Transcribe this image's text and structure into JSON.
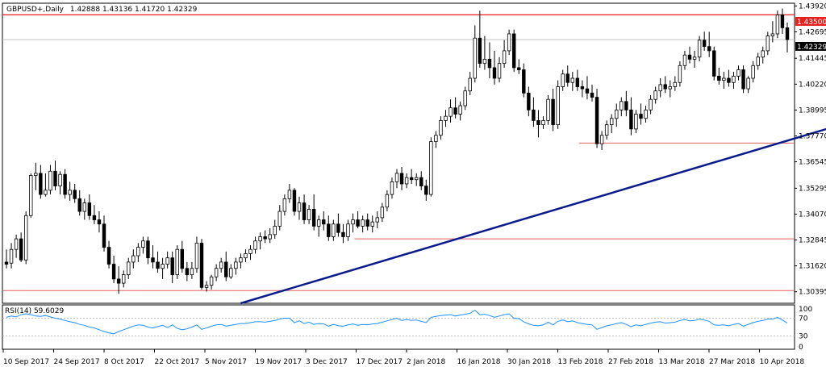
{
  "chart_data": {
    "type": "candlestick",
    "title": "GBPUSD+,Daily",
    "ohlc_readout": "1.42888 1.43136 1.41720 1.42329",
    "price_axis": {
      "ylim": [
        1.2985,
        1.4405
      ],
      "ticks": [
        "1.43920",
        "1.42695",
        "1.41445",
        "1.40220",
        "1.38995",
        "1.37770",
        "1.36545",
        "1.35295",
        "1.34070",
        "1.32845",
        "1.31620",
        "1.30395"
      ]
    },
    "x_axis": {
      "tick_labels": [
        "10 Sep 2017",
        "24 Sep 2017",
        "8 Oct 2017",
        "22 Oct 2017",
        "5 Nov 2017",
        "19 Nov 2017",
        "3 Dec 2017",
        "17 Dec 2017",
        "2 Jan 2018",
        "16 Jan 2018",
        "30 Jan 2018",
        "13 Feb 2018",
        "27 Feb 2018",
        "13 Mar 2018",
        "27 Mar 2018",
        "10 Apr 2018"
      ]
    },
    "current_price_label": "1.42329",
    "resistance_label": "1.43500",
    "horizontal_levels": [
      {
        "price": 1.435,
        "color": "#e8211f",
        "labeled": true
      },
      {
        "price": 1.3743,
        "color": "#e06060",
        "from_bar": 118
      },
      {
        "price": 1.329,
        "color": "#e06060",
        "from_bar": 72
      },
      {
        "price": 1.3045,
        "color": "#e06060",
        "from_bar": 0
      }
    ],
    "trendline": {
      "color": "#0b1a8c",
      "points": [
        [
          48,
          1.2985
        ],
        [
          203,
          1.405
        ]
      ]
    },
    "candles": [
      {
        "o": 1.318,
        "h": 1.324,
        "l": 1.315,
        "c": 1.317
      },
      {
        "o": 1.3175,
        "h": 1.327,
        "l": 1.315,
        "c": 1.324
      },
      {
        "o": 1.324,
        "h": 1.331,
        "l": 1.32,
        "c": 1.329
      },
      {
        "o": 1.329,
        "h": 1.332,
        "l": 1.318,
        "c": 1.319
      },
      {
        "o": 1.319,
        "h": 1.342,
        "l": 1.317,
        "c": 1.34
      },
      {
        "o": 1.34,
        "h": 1.36,
        "l": 1.339,
        "c": 1.359
      },
      {
        "o": 1.359,
        "h": 1.365,
        "l": 1.352,
        "c": 1.36
      },
      {
        "o": 1.36,
        "h": 1.364,
        "l": 1.348,
        "c": 1.35
      },
      {
        "o": 1.35,
        "h": 1.36,
        "l": 1.349,
        "c": 1.352
      },
      {
        "o": 1.352,
        "h": 1.364,
        "l": 1.35,
        "c": 1.361
      },
      {
        "o": 1.361,
        "h": 1.366,
        "l": 1.352,
        "c": 1.354
      },
      {
        "o": 1.354,
        "h": 1.361,
        "l": 1.35,
        "c": 1.3595
      },
      {
        "o": 1.3595,
        "h": 1.362,
        "l": 1.348,
        "c": 1.35
      },
      {
        "o": 1.35,
        "h": 1.356,
        "l": 1.347,
        "c": 1.352
      },
      {
        "o": 1.352,
        "h": 1.355,
        "l": 1.346,
        "c": 1.348
      },
      {
        "o": 1.348,
        "h": 1.352,
        "l": 1.34,
        "c": 1.342
      },
      {
        "o": 1.342,
        "h": 1.348,
        "l": 1.338,
        "c": 1.346
      },
      {
        "o": 1.346,
        "h": 1.35,
        "l": 1.338,
        "c": 1.34
      },
      {
        "o": 1.34,
        "h": 1.345,
        "l": 1.336,
        "c": 1.338
      },
      {
        "o": 1.338,
        "h": 1.342,
        "l": 1.332,
        "c": 1.336
      },
      {
        "o": 1.336,
        "h": 1.34,
        "l": 1.323,
        "c": 1.325
      },
      {
        "o": 1.325,
        "h": 1.328,
        "l": 1.315,
        "c": 1.317
      },
      {
        "o": 1.317,
        "h": 1.321,
        "l": 1.308,
        "c": 1.31
      },
      {
        "o": 1.31,
        "h": 1.316,
        "l": 1.303,
        "c": 1.308
      },
      {
        "o": 1.308,
        "h": 1.314,
        "l": 1.306,
        "c": 1.312
      },
      {
        "o": 1.312,
        "h": 1.32,
        "l": 1.31,
        "c": 1.318
      },
      {
        "o": 1.318,
        "h": 1.324,
        "l": 1.315,
        "c": 1.321
      },
      {
        "o": 1.321,
        "h": 1.327,
        "l": 1.318,
        "c": 1.325
      },
      {
        "o": 1.325,
        "h": 1.33,
        "l": 1.322,
        "c": 1.328
      },
      {
        "o": 1.328,
        "h": 1.33,
        "l": 1.317,
        "c": 1.32
      },
      {
        "o": 1.32,
        "h": 1.326,
        "l": 1.315,
        "c": 1.318
      },
      {
        "o": 1.318,
        "h": 1.323,
        "l": 1.313,
        "c": 1.315
      },
      {
        "o": 1.315,
        "h": 1.32,
        "l": 1.31,
        "c": 1.317
      },
      {
        "o": 1.317,
        "h": 1.323,
        "l": 1.315,
        "c": 1.32
      },
      {
        "o": 1.32,
        "h": 1.323,
        "l": 1.308,
        "c": 1.312
      },
      {
        "o": 1.312,
        "h": 1.326,
        "l": 1.31,
        "c": 1.324
      },
      {
        "o": 1.324,
        "h": 1.328,
        "l": 1.313,
        "c": 1.315
      },
      {
        "o": 1.315,
        "h": 1.318,
        "l": 1.309,
        "c": 1.312
      },
      {
        "o": 1.312,
        "h": 1.318,
        "l": 1.31,
        "c": 1.315
      },
      {
        "o": 1.315,
        "h": 1.33,
        "l": 1.313,
        "c": 1.327
      },
      {
        "o": 1.327,
        "h": 1.329,
        "l": 1.305,
        "c": 1.306
      },
      {
        "o": 1.306,
        "h": 1.309,
        "l": 1.304,
        "c": 1.307
      },
      {
        "o": 1.307,
        "h": 1.312,
        "l": 1.305,
        "c": 1.311
      },
      {
        "o": 1.311,
        "h": 1.317,
        "l": 1.309,
        "c": 1.315
      },
      {
        "o": 1.315,
        "h": 1.32,
        "l": 1.313,
        "c": 1.318
      },
      {
        "o": 1.318,
        "h": 1.323,
        "l": 1.309,
        "c": 1.311
      },
      {
        "o": 1.311,
        "h": 1.317,
        "l": 1.31,
        "c": 1.315
      },
      {
        "o": 1.315,
        "h": 1.32,
        "l": 1.312,
        "c": 1.318
      },
      {
        "o": 1.318,
        "h": 1.322,
        "l": 1.315,
        "c": 1.32
      },
      {
        "o": 1.32,
        "h": 1.324,
        "l": 1.318,
        "c": 1.322
      },
      {
        "o": 1.322,
        "h": 1.326,
        "l": 1.319,
        "c": 1.324
      },
      {
        "o": 1.324,
        "h": 1.33,
        "l": 1.322,
        "c": 1.328
      },
      {
        "o": 1.328,
        "h": 1.332,
        "l": 1.324,
        "c": 1.33
      },
      {
        "o": 1.33,
        "h": 1.333,
        "l": 1.327,
        "c": 1.329
      },
      {
        "o": 1.329,
        "h": 1.334,
        "l": 1.327,
        "c": 1.331
      },
      {
        "o": 1.331,
        "h": 1.338,
        "l": 1.329,
        "c": 1.335
      },
      {
        "o": 1.335,
        "h": 1.345,
        "l": 1.333,
        "c": 1.342
      },
      {
        "o": 1.342,
        "h": 1.35,
        "l": 1.34,
        "c": 1.348
      },
      {
        "o": 1.348,
        "h": 1.355,
        "l": 1.346,
        "c": 1.352
      },
      {
        "o": 1.352,
        "h": 1.353,
        "l": 1.34,
        "c": 1.342
      },
      {
        "o": 1.342,
        "h": 1.349,
        "l": 1.338,
        "c": 1.346
      },
      {
        "o": 1.346,
        "h": 1.35,
        "l": 1.336,
        "c": 1.338
      },
      {
        "o": 1.338,
        "h": 1.345,
        "l": 1.336,
        "c": 1.343
      },
      {
        "o": 1.343,
        "h": 1.35,
        "l": 1.333,
        "c": 1.335
      },
      {
        "o": 1.335,
        "h": 1.34,
        "l": 1.33,
        "c": 1.338
      },
      {
        "o": 1.338,
        "h": 1.342,
        "l": 1.333,
        "c": 1.336
      },
      {
        "o": 1.336,
        "h": 1.34,
        "l": 1.328,
        "c": 1.33
      },
      {
        "o": 1.33,
        "h": 1.338,
        "l": 1.328,
        "c": 1.336
      },
      {
        "o": 1.336,
        "h": 1.341,
        "l": 1.33,
        "c": 1.332
      },
      {
        "o": 1.332,
        "h": 1.336,
        "l": 1.327,
        "c": 1.33
      },
      {
        "o": 1.33,
        "h": 1.338,
        "l": 1.328,
        "c": 1.336
      },
      {
        "o": 1.336,
        "h": 1.341,
        "l": 1.332,
        "c": 1.338
      },
      {
        "o": 1.338,
        "h": 1.342,
        "l": 1.334,
        "c": 1.335
      },
      {
        "o": 1.335,
        "h": 1.34,
        "l": 1.332,
        "c": 1.338
      },
      {
        "o": 1.338,
        "h": 1.341,
        "l": 1.333,
        "c": 1.335
      },
      {
        "o": 1.335,
        "h": 1.34,
        "l": 1.332,
        "c": 1.337
      },
      {
        "o": 1.337,
        "h": 1.342,
        "l": 1.334,
        "c": 1.339
      },
      {
        "o": 1.339,
        "h": 1.346,
        "l": 1.337,
        "c": 1.344
      },
      {
        "o": 1.344,
        "h": 1.352,
        "l": 1.342,
        "c": 1.35
      },
      {
        "o": 1.35,
        "h": 1.358,
        "l": 1.348,
        "c": 1.356
      },
      {
        "o": 1.356,
        "h": 1.362,
        "l": 1.353,
        "c": 1.36
      },
      {
        "o": 1.36,
        "h": 1.363,
        "l": 1.352,
        "c": 1.355
      },
      {
        "o": 1.355,
        "h": 1.36,
        "l": 1.353,
        "c": 1.358
      },
      {
        "o": 1.358,
        "h": 1.362,
        "l": 1.355,
        "c": 1.357
      },
      {
        "o": 1.357,
        "h": 1.36,
        "l": 1.354,
        "c": 1.358
      },
      {
        "o": 1.358,
        "h": 1.361,
        "l": 1.352,
        "c": 1.354
      },
      {
        "o": 1.354,
        "h": 1.357,
        "l": 1.347,
        "c": 1.35
      },
      {
        "o": 1.35,
        "h": 1.377,
        "l": 1.349,
        "c": 1.375
      },
      {
        "o": 1.375,
        "h": 1.38,
        "l": 1.372,
        "c": 1.378
      },
      {
        "o": 1.378,
        "h": 1.387,
        "l": 1.376,
        "c": 1.385
      },
      {
        "o": 1.385,
        "h": 1.39,
        "l": 1.382,
        "c": 1.387
      },
      {
        "o": 1.387,
        "h": 1.395,
        "l": 1.384,
        "c": 1.391
      },
      {
        "o": 1.391,
        "h": 1.396,
        "l": 1.386,
        "c": 1.388
      },
      {
        "o": 1.388,
        "h": 1.394,
        "l": 1.385,
        "c": 1.392
      },
      {
        "o": 1.392,
        "h": 1.401,
        "l": 1.39,
        "c": 1.399
      },
      {
        "o": 1.399,
        "h": 1.408,
        "l": 1.397,
        "c": 1.405
      },
      {
        "o": 1.405,
        "h": 1.43,
        "l": 1.403,
        "c": 1.424
      },
      {
        "o": 1.424,
        "h": 1.437,
        "l": 1.41,
        "c": 1.412
      },
      {
        "o": 1.412,
        "h": 1.425,
        "l": 1.409,
        "c": 1.414
      },
      {
        "o": 1.414,
        "h": 1.422,
        "l": 1.405,
        "c": 1.41
      },
      {
        "o": 1.41,
        "h": 1.418,
        "l": 1.402,
        "c": 1.405
      },
      {
        "o": 1.405,
        "h": 1.415,
        "l": 1.403,
        "c": 1.412
      },
      {
        "o": 1.412,
        "h": 1.423,
        "l": 1.41,
        "c": 1.418
      },
      {
        "o": 1.418,
        "h": 1.428,
        "l": 1.416,
        "c": 1.426
      },
      {
        "o": 1.426,
        "h": 1.428,
        "l": 1.408,
        "c": 1.41
      },
      {
        "o": 1.41,
        "h": 1.414,
        "l": 1.407,
        "c": 1.409
      },
      {
        "o": 1.409,
        "h": 1.412,
        "l": 1.396,
        "c": 1.398
      },
      {
        "o": 1.398,
        "h": 1.401,
        "l": 1.387,
        "c": 1.39
      },
      {
        "o": 1.39,
        "h": 1.396,
        "l": 1.382,
        "c": 1.385
      },
      {
        "o": 1.385,
        "h": 1.39,
        "l": 1.377,
        "c": 1.383
      },
      {
        "o": 1.383,
        "h": 1.387,
        "l": 1.381,
        "c": 1.385
      },
      {
        "o": 1.385,
        "h": 1.397,
        "l": 1.383,
        "c": 1.395
      },
      {
        "o": 1.395,
        "h": 1.4,
        "l": 1.38,
        "c": 1.383
      },
      {
        "o": 1.383,
        "h": 1.404,
        "l": 1.381,
        "c": 1.401
      },
      {
        "o": 1.401,
        "h": 1.409,
        "l": 1.399,
        "c": 1.407
      },
      {
        "o": 1.407,
        "h": 1.411,
        "l": 1.401,
        "c": 1.403
      },
      {
        "o": 1.403,
        "h": 1.408,
        "l": 1.399,
        "c": 1.405
      },
      {
        "o": 1.405,
        "h": 1.409,
        "l": 1.399,
        "c": 1.401
      },
      {
        "o": 1.401,
        "h": 1.404,
        "l": 1.396,
        "c": 1.4
      },
      {
        "o": 1.4,
        "h": 1.406,
        "l": 1.395,
        "c": 1.398
      },
      {
        "o": 1.398,
        "h": 1.402,
        "l": 1.394,
        "c": 1.396
      },
      {
        "o": 1.396,
        "h": 1.4,
        "l": 1.372,
        "c": 1.374
      },
      {
        "o": 1.374,
        "h": 1.38,
        "l": 1.371,
        "c": 1.378
      },
      {
        "o": 1.378,
        "h": 1.385,
        "l": 1.376,
        "c": 1.383
      },
      {
        "o": 1.383,
        "h": 1.388,
        "l": 1.379,
        "c": 1.386
      },
      {
        "o": 1.386,
        "h": 1.393,
        "l": 1.382,
        "c": 1.39
      },
      {
        "o": 1.39,
        "h": 1.396,
        "l": 1.387,
        "c": 1.394
      },
      {
        "o": 1.394,
        "h": 1.399,
        "l": 1.387,
        "c": 1.39
      },
      {
        "o": 1.39,
        "h": 1.396,
        "l": 1.378,
        "c": 1.381
      },
      {
        "o": 1.381,
        "h": 1.39,
        "l": 1.379,
        "c": 1.388
      },
      {
        "o": 1.388,
        "h": 1.393,
        "l": 1.383,
        "c": 1.386
      },
      {
        "o": 1.386,
        "h": 1.392,
        "l": 1.384,
        "c": 1.39
      },
      {
        "o": 1.39,
        "h": 1.397,
        "l": 1.388,
        "c": 1.395
      },
      {
        "o": 1.395,
        "h": 1.401,
        "l": 1.393,
        "c": 1.399
      },
      {
        "o": 1.399,
        "h": 1.405,
        "l": 1.396,
        "c": 1.402
      },
      {
        "o": 1.402,
        "h": 1.406,
        "l": 1.398,
        "c": 1.4
      },
      {
        "o": 1.4,
        "h": 1.404,
        "l": 1.396,
        "c": 1.401
      },
      {
        "o": 1.401,
        "h": 1.406,
        "l": 1.399,
        "c": 1.403
      },
      {
        "o": 1.403,
        "h": 1.413,
        "l": 1.401,
        "c": 1.411
      },
      {
        "o": 1.411,
        "h": 1.418,
        "l": 1.409,
        "c": 1.416
      },
      {
        "o": 1.416,
        "h": 1.42,
        "l": 1.412,
        "c": 1.414
      },
      {
        "o": 1.414,
        "h": 1.418,
        "l": 1.41,
        "c": 1.415
      },
      {
        "o": 1.415,
        "h": 1.425,
        "l": 1.413,
        "c": 1.423
      },
      {
        "o": 1.423,
        "h": 1.427,
        "l": 1.418,
        "c": 1.42
      },
      {
        "o": 1.42,
        "h": 1.427,
        "l": 1.415,
        "c": 1.418
      },
      {
        "o": 1.418,
        "h": 1.42,
        "l": 1.404,
        "c": 1.406
      },
      {
        "o": 1.406,
        "h": 1.41,
        "l": 1.402,
        "c": 1.404
      },
      {
        "o": 1.404,
        "h": 1.408,
        "l": 1.4,
        "c": 1.405
      },
      {
        "o": 1.405,
        "h": 1.409,
        "l": 1.401,
        "c": 1.403
      },
      {
        "o": 1.403,
        "h": 1.408,
        "l": 1.4,
        "c": 1.406
      },
      {
        "o": 1.406,
        "h": 1.411,
        "l": 1.404,
        "c": 1.409
      },
      {
        "o": 1.409,
        "h": 1.411,
        "l": 1.398,
        "c": 1.4
      },
      {
        "o": 1.4,
        "h": 1.406,
        "l": 1.398,
        "c": 1.405
      },
      {
        "o": 1.405,
        "h": 1.413,
        "l": 1.403,
        "c": 1.411
      },
      {
        "o": 1.411,
        "h": 1.417,
        "l": 1.409,
        "c": 1.415
      },
      {
        "o": 1.415,
        "h": 1.42,
        "l": 1.412,
        "c": 1.418
      },
      {
        "o": 1.418,
        "h": 1.427,
        "l": 1.416,
        "c": 1.425
      },
      {
        "o": 1.425,
        "h": 1.432,
        "l": 1.422,
        "c": 1.426
      },
      {
        "o": 1.426,
        "h": 1.437,
        "l": 1.424,
        "c": 1.435
      },
      {
        "o": 1.435,
        "h": 1.438,
        "l": 1.426,
        "c": 1.4289
      },
      {
        "o": 1.42888,
        "h": 1.43136,
        "l": 1.4172,
        "c": 1.42329
      }
    ],
    "rsi": {
      "label": "RSI(14) 59.6029",
      "ylim": [
        0,
        100
      ],
      "ticks": [
        "100",
        "70",
        "30",
        "0"
      ],
      "levels": [
        70,
        30
      ],
      "line_color": "#1e90ff",
      "values": [
        72,
        75,
        73,
        78,
        80,
        78,
        75,
        74,
        76,
        73,
        70,
        68,
        65,
        62,
        60,
        56,
        54,
        50,
        48,
        44,
        40,
        37,
        35,
        40,
        44,
        48,
        52,
        55,
        54,
        50,
        48,
        51,
        54,
        49,
        55,
        47,
        44,
        46,
        50,
        55,
        45,
        48,
        52,
        55,
        56,
        52,
        54,
        56,
        58,
        58,
        60,
        62,
        62,
        61,
        63,
        65,
        68,
        70,
        70,
        60,
        64,
        58,
        61,
        56,
        58,
        57,
        52,
        56,
        53,
        52,
        55,
        57,
        54,
        56,
        55,
        57,
        58,
        61,
        64,
        67,
        70,
        65,
        67,
        65,
        66,
        63,
        60,
        72,
        74,
        76,
        77,
        78,
        75,
        77,
        79,
        81,
        88,
        78,
        79,
        76,
        72,
        75,
        78,
        80,
        70,
        69,
        62,
        57,
        54,
        53,
        55,
        61,
        55,
        63,
        66,
        62,
        64,
        60,
        58,
        56,
        55,
        45,
        49,
        53,
        55,
        58,
        60,
        56,
        51,
        55,
        53,
        56,
        59,
        61,
        62,
        59,
        60,
        61,
        65,
        67,
        64,
        65,
        68,
        66,
        63,
        55,
        54,
        55,
        53,
        56,
        58,
        52,
        56,
        60,
        63,
        65,
        68,
        68,
        72,
        66,
        59
      ]
    }
  }
}
